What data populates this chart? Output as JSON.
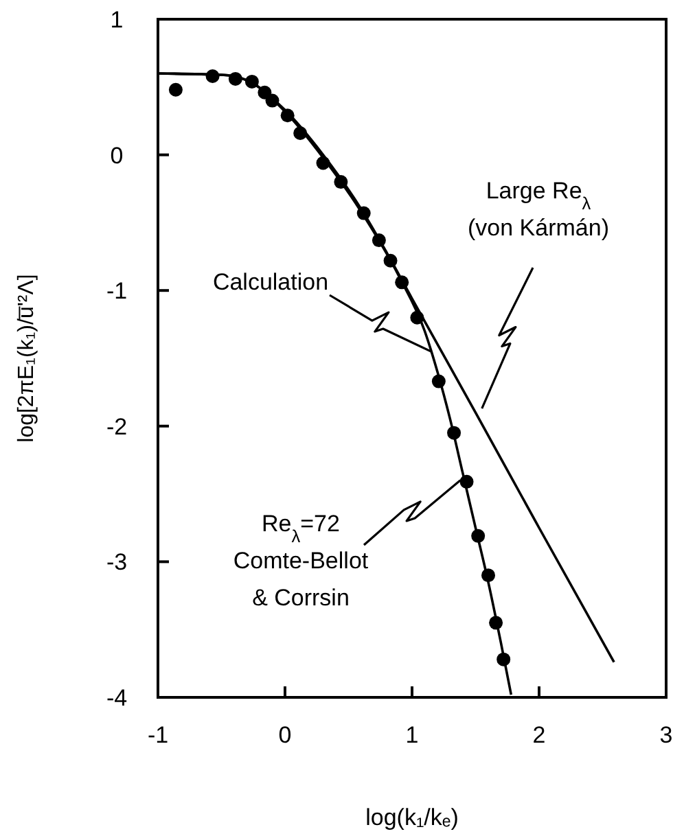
{
  "chart_data": {
    "type": "line",
    "xlabel": "log(k₁/kₑ)",
    "ylabel": "log[2πE₁(k₁)/u̅'²Λ]",
    "xlim": [
      -1,
      3
    ],
    "ylim": [
      -4,
      1
    ],
    "xticks": [
      -1,
      0,
      1,
      2,
      3
    ],
    "yticks": [
      -4,
      -3,
      -2,
      -1,
      0,
      1
    ],
    "grid": false,
    "series": [
      {
        "type": "scatter",
        "marker": "circle",
        "color": "#000000",
        "x": [
          -0.86,
          -0.57,
          -0.39,
          -0.26,
          -0.16,
          -0.1,
          0.02,
          0.12,
          0.3,
          0.44,
          0.62,
          0.74,
          0.83,
          0.92,
          1.04,
          1.21,
          1.33,
          1.43,
          1.52,
          1.6,
          1.66,
          1.72
        ],
        "values": [
          0.48,
          0.58,
          0.56,
          0.54,
          0.46,
          0.4,
          0.29,
          0.16,
          -0.06,
          -0.2,
          -0.43,
          -0.63,
          -0.78,
          -0.94,
          -1.2,
          -1.67,
          -2.05,
          -2.41,
          -2.81,
          -3.1,
          -3.45,
          -3.72
        ]
      },
      {
        "line_style": "solid",
        "color": "#000000",
        "x": [
          -1,
          -0.5,
          -0.3,
          0,
          0.3,
          0.6,
          0.9,
          1.1,
          1.2,
          1.3,
          1.4,
          1.5,
          1.6,
          1.7,
          1.78
        ],
        "values": [
          0.6,
          0.59,
          0.55,
          0.32,
          -0.02,
          -0.42,
          -0.9,
          -1.3,
          -1.6,
          -1.95,
          -2.35,
          -2.75,
          -3.15,
          -3.6,
          -3.98
        ]
      },
      {
        "line_style": "solid",
        "color": "#000000",
        "x": [
          -1,
          -0.5,
          -0.3,
          0,
          0.3,
          0.6,
          0.8,
          1,
          1.5,
          2,
          2.59
        ],
        "values": [
          0.6,
          0.59,
          0.55,
          0.33,
          0,
          -0.4,
          -0.72,
          -1.06,
          -1.9,
          -2.75,
          -3.74
        ]
      }
    ],
    "annotations": [
      {
        "text": "Calculation",
        "x": 1.15,
        "y": -1.45
      },
      {
        "text": "Large Re$_{λ}$\n(von Kármán)",
        "x": 1.55,
        "y": -1.87
      },
      {
        "text": "Re$_{λ}$=72\nComte-Bellot\n& Corrsin",
        "x": 1.38,
        "y": -2.4
      }
    ]
  }
}
